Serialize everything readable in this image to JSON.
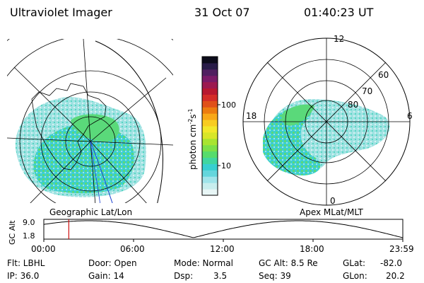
{
  "header": {
    "instrument": "Ultraviolet Imager",
    "date": "31 Oct 07",
    "time": "01:40:23 UT"
  },
  "left_panel": {
    "label": "Geographic Lat/Lon"
  },
  "right_panel": {
    "label": "Apex  MLat/MLT",
    "mlt_labels": [
      "12",
      "18",
      "6",
      "0"
    ],
    "mlat_labels": [
      "60",
      "70",
      "80"
    ]
  },
  "colorbar": {
    "unit_prefix": "photon cm",
    "unit_sup1": "-2",
    "unit_mid": "s",
    "unit_sup2": "-1",
    "ticks": [
      {
        "label": "100",
        "value": 100
      },
      {
        "label": "10",
        "value": 10
      }
    ],
    "colors": [
      "#e8f6f6",
      "#c8eeee",
      "#a0e4ea",
      "#64d6dc",
      "#38cfd0",
      "#40d6a0",
      "#56dc6c",
      "#7ce048",
      "#a8e430",
      "#d8e628",
      "#f2e82a",
      "#f8cc20",
      "#f8a818",
      "#ec7c10",
      "#e0501a",
      "#d42c28",
      "#b81830",
      "#9c1a50",
      "#7a1c68",
      "#502060",
      "#281c48",
      "#0c0c1a"
    ]
  },
  "timeline": {
    "axis_label": "GC Alt",
    "y_ticks": [
      "9.0",
      "1.8"
    ],
    "x_ticks": [
      "00:00",
      "06:00",
      "12:00",
      "18:00",
      "23:59"
    ],
    "current_time_hours": 1.67,
    "marker_color": "#d01010"
  },
  "status": {
    "flt": "Flt: LBHL",
    "ip": "IP: 36.0",
    "door": "Door: Open",
    "gain": "Gain: 14",
    "mode": "Mode: Normal",
    "dsp_label": "Dsp:",
    "dsp_value": "3.5",
    "gc_alt": "GC Alt: 8.5 Re",
    "seq": "Seq: 39",
    "glat_label": "GLat:",
    "glat_value": "-82.0",
    "glon_label": "GLon:",
    "glon_value": "20.2"
  }
}
